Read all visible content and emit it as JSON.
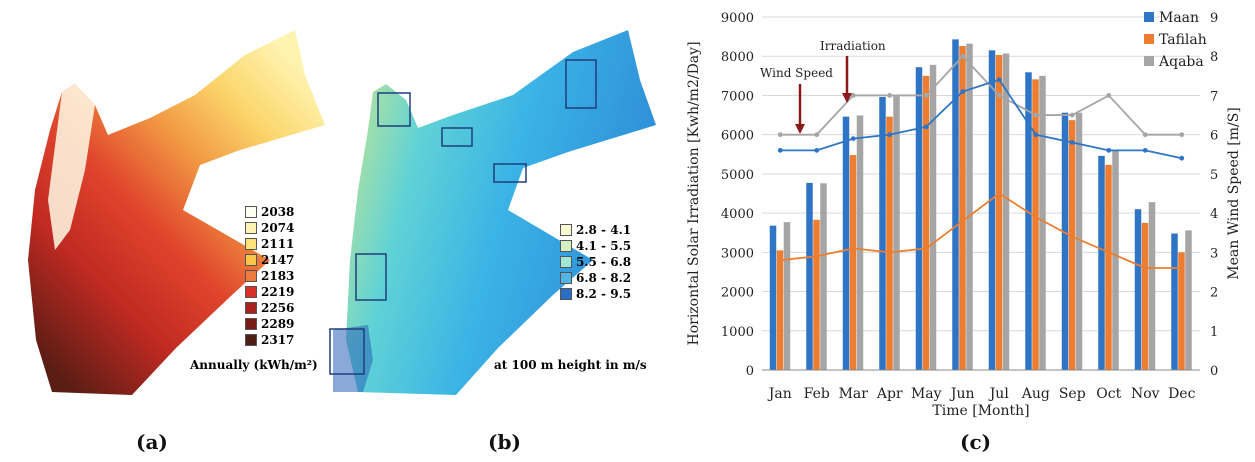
{
  "panels": {
    "a": {
      "caption": "(a)",
      "legend": [
        "2038",
        "2074",
        "2111",
        "2147",
        "2183",
        "2219",
        "2256",
        "2289",
        "2317"
      ],
      "legend_colors": [
        "#fffef0",
        "#fff3b3",
        "#fde27a",
        "#f9c548",
        "#ef7a3c",
        "#d9312a",
        "#a82220",
        "#781a16",
        "#4e1e14"
      ],
      "note": "Annually (kWh/m²)"
    },
    "b": {
      "caption": "(b)",
      "legend": [
        "2.8 - 4.1",
        "4.1 - 5.5",
        "5.5 - 6.8",
        "6.8 - 8.2",
        "8.2 - 9.5"
      ],
      "legend_colors": [
        "#fbfbd2",
        "#d4f0c2",
        "#9ee7d8",
        "#54b4e6",
        "#2b6fc4"
      ],
      "note": "at 100 m height in m/s"
    },
    "c": {
      "caption": "(c)"
    }
  },
  "chart_data": {
    "type": "bar",
    "categories": [
      "Jan",
      "Feb",
      "Mar",
      "Apr",
      "May",
      "Jun",
      "Jul",
      "Aug",
      "Sep",
      "Oct",
      "Nov",
      "Dec"
    ],
    "series": [
      {
        "name": "Maan",
        "color": "#2e75c6",
        "values": [
          3680,
          4770,
          6460,
          6960,
          7720,
          8430,
          8150,
          7590,
          6560,
          5460,
          4100,
          3480
        ]
      },
      {
        "name": "Tafilah",
        "color": "#ed7d31",
        "values": [
          3050,
          3830,
          5480,
          6460,
          7500,
          8260,
          8030,
          7410,
          6370,
          5230,
          3750,
          3000
        ]
      },
      {
        "name": "Aqaba",
        "color": "#a5a5a5",
        "values": [
          3770,
          4760,
          6490,
          6980,
          7780,
          8320,
          8070,
          7500,
          6560,
          5590,
          4280,
          3560
        ]
      }
    ],
    "wind_series": [
      {
        "color": "#a5a5a5",
        "values": [
          6.0,
          6.0,
          7.0,
          7.0,
          7.0,
          8.0,
          7.0,
          6.5,
          6.5,
          7.0,
          6.0,
          6.0
        ]
      },
      {
        "color": "#2e75c6",
        "values": [
          5.6,
          5.6,
          5.9,
          6.0,
          6.2,
          7.1,
          7.4,
          6.0,
          5.8,
          5.6,
          5.6,
          5.4
        ]
      },
      {
        "color": "#ed7d31",
        "values": [
          2.8,
          2.9,
          3.1,
          3.0,
          3.1,
          3.8,
          4.5,
          3.9,
          3.4,
          3.0,
          2.6,
          2.6
        ]
      }
    ],
    "xlabel": "Time [Month]",
    "ylabel": "Horizontal Solar Irradiation [Kwh/m2/Day]",
    "y2label": "Mean Wind Speed [m/S]",
    "ylim": [
      0,
      9000
    ],
    "yticks": [
      "0",
      "1000",
      "2000",
      "3000",
      "4000",
      "5000",
      "6000",
      "7000",
      "8000",
      "9000"
    ],
    "y2lim": [
      0,
      9
    ],
    "y2ticks": [
      "0",
      "1",
      "2",
      "3",
      "4",
      "5",
      "6",
      "7",
      "8",
      "9"
    ],
    "annotations": {
      "wind": "Wind Speed",
      "irradiation": "Irradiation"
    },
    "grid": true,
    "legend_position": "top-right"
  }
}
